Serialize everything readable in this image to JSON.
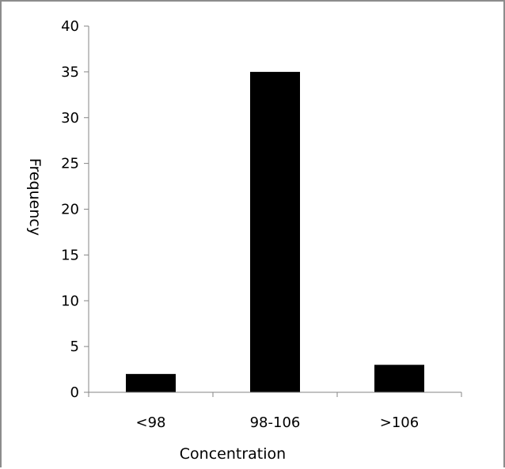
{
  "chart_data": {
    "type": "bar",
    "categories": [
      "<98",
      "98-106",
      ">106"
    ],
    "values": [
      2,
      35,
      3
    ],
    "title": "",
    "xlabel": "Concentration",
    "ylabel": "Frequency",
    "ylim": [
      0,
      40
    ],
    "yticks": [
      0,
      5,
      10,
      15,
      20,
      25,
      30,
      35,
      40
    ],
    "grid": false,
    "legend": "none",
    "bar_color": "#000000",
    "axis_color": "#868686"
  }
}
